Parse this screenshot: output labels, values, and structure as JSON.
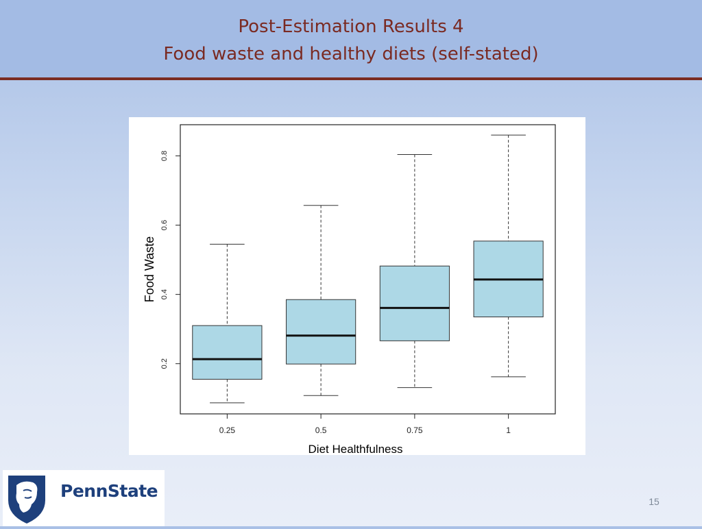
{
  "slide": {
    "title_line1": "Post-Estimation Results 4",
    "title_line2": "Food waste and healthy diets (self-stated)",
    "page_number": "15"
  },
  "logo": {
    "text": "PennState",
    "brand_color": "#1e407c"
  },
  "colors": {
    "header_text": "#7a2a22",
    "header_rule": "#7b2c22",
    "box_fill": "#add8e6"
  },
  "chart_data": {
    "type": "boxplot",
    "categories": [
      "0.25",
      "0.5",
      "0.75",
      "1"
    ],
    "boxes": [
      {
        "category": "0.25",
        "whisker_low": 0.087,
        "q1": 0.155,
        "median": 0.213,
        "q3": 0.31,
        "whisker_high": 0.545
      },
      {
        "category": "0.5",
        "whisker_low": 0.108,
        "q1": 0.199,
        "median": 0.281,
        "q3": 0.385,
        "whisker_high": 0.657
      },
      {
        "category": "0.75",
        "whisker_low": 0.131,
        "q1": 0.266,
        "median": 0.361,
        "q3": 0.482,
        "whisker_high": 0.804
      },
      {
        "category": "1",
        "whisker_low": 0.162,
        "q1": 0.335,
        "median": 0.443,
        "q3": 0.554,
        "whisker_high": 0.86
      }
    ],
    "xlabel": "Diet Healthfulness",
    "ylabel": "Food Waste",
    "y_ticks": [
      0.2,
      0.4,
      0.6,
      0.8
    ],
    "y_tick_labels": [
      "0.2",
      "0.4",
      "0.6",
      "0.8"
    ],
    "ylim": [
      0.055,
      0.89
    ],
    "grid": false,
    "legend": "none"
  }
}
